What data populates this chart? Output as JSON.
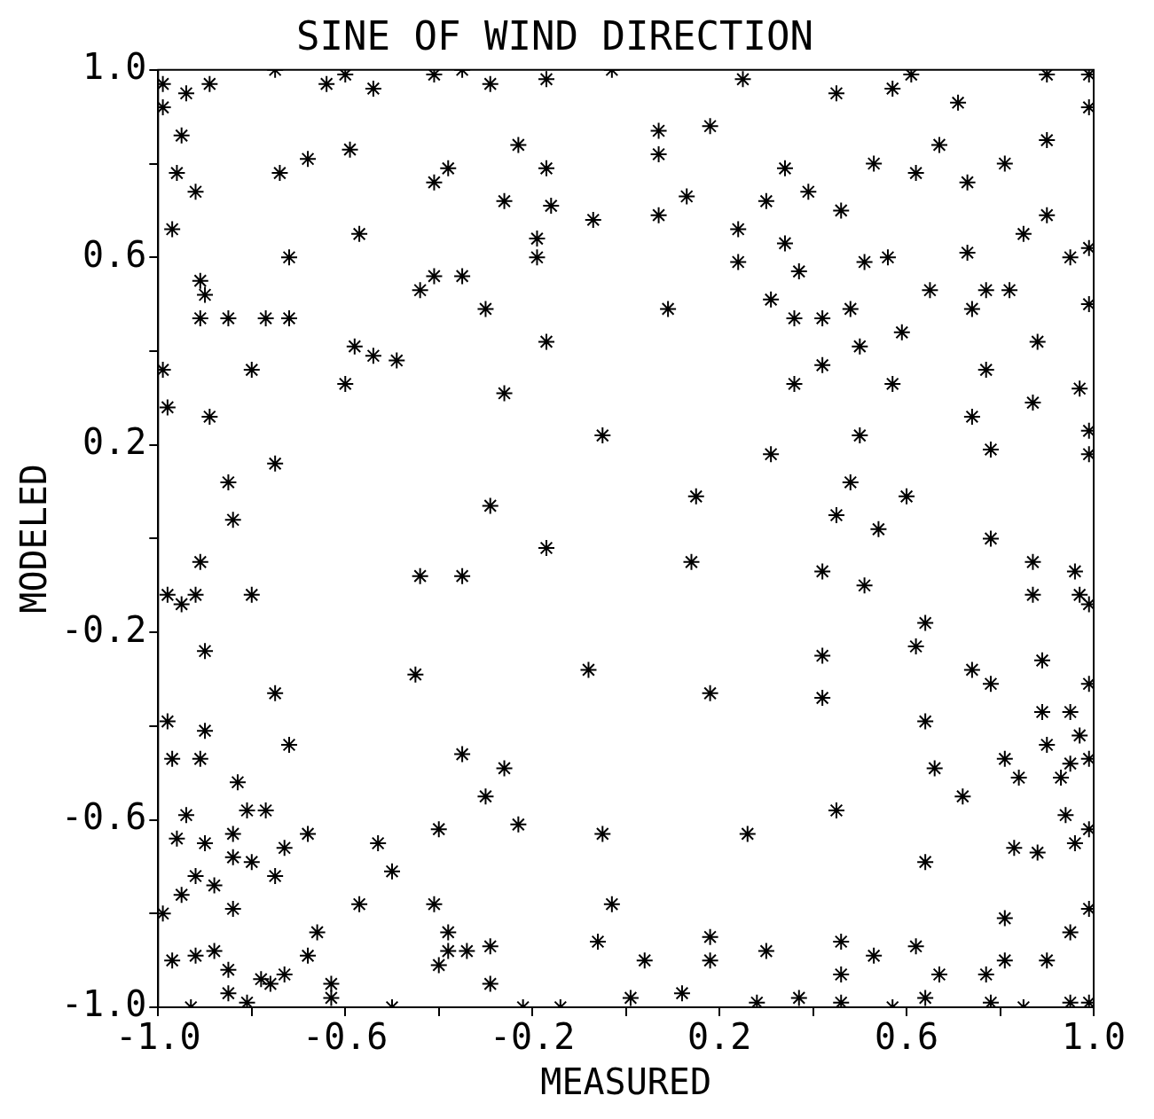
{
  "chart_data": {
    "type": "scatter",
    "title": "SINE OF WIND DIRECTION",
    "xlabel": "MEASURED",
    "ylabel": "MODELED",
    "xlim": [
      -1,
      1
    ],
    "ylim": [
      -1,
      1
    ],
    "xticks": [
      {
        "value": -1,
        "label": "-1.0"
      },
      {
        "value": -0.8,
        "label": null
      },
      {
        "value": -0.6,
        "label": "-0.6"
      },
      {
        "value": -0.4,
        "label": null
      },
      {
        "value": -0.2,
        "label": "-0.2"
      },
      {
        "value": 0,
        "label": null
      },
      {
        "value": 0.2,
        "label": "0.2"
      },
      {
        "value": 0.4,
        "label": null
      },
      {
        "value": 0.6,
        "label": "0.6"
      },
      {
        "value": 0.8,
        "label": null
      },
      {
        "value": 1,
        "label": "1.0"
      }
    ],
    "yticks": [
      {
        "value": -1,
        "label": "-1.0"
      },
      {
        "value": -0.8,
        "label": null
      },
      {
        "value": -0.6,
        "label": "-0.6"
      },
      {
        "value": -0.4,
        "label": null
      },
      {
        "value": -0.2,
        "label": "-0.2"
      },
      {
        "value": 0,
        "label": null
      },
      {
        "value": 0.2,
        "label": "0.2"
      },
      {
        "value": 0.4,
        "label": null
      },
      {
        "value": 0.6,
        "label": "0.6"
      },
      {
        "value": 0.8,
        "label": null
      },
      {
        "value": 1,
        "label": "1.0"
      }
    ],
    "grid": false,
    "legend": false,
    "marker": "cross",
    "series": [
      {
        "color": "#000000",
        "x": [
          -0.99,
          -0.94,
          -0.89,
          -0.75,
          -0.64,
          -0.6,
          -0.54,
          -0.41,
          -0.35,
          -0.29,
          -0.17,
          -0.03,
          0.25,
          0.45,
          0.57,
          0.61,
          0.9,
          0.99,
          -0.99,
          -0.95,
          -0.96,
          -0.92,
          -0.97,
          -0.91,
          -0.9,
          -0.91,
          -0.85,
          -0.77,
          -0.72,
          -0.72,
          -0.74,
          -0.68,
          -0.59,
          -0.57,
          -0.8,
          -0.99,
          -0.98,
          -0.89,
          -0.6,
          -0.58,
          -0.54,
          -0.49,
          -0.44,
          -0.41,
          -0.35,
          -0.3,
          -0.26,
          -0.26,
          -0.41,
          -0.38,
          -0.23,
          -0.19,
          -0.19,
          -0.17,
          -0.16,
          -0.17,
          -0.07,
          -0.05,
          0.07,
          0.07,
          0.07,
          0.09,
          0.13,
          0.18,
          0.24,
          0.24,
          0.3,
          0.31,
          0.34,
          0.34,
          0.36,
          0.36,
          0.37,
          0.39,
          0.42,
          0.42,
          0.46,
          0.48,
          0.5,
          0.5,
          0.51,
          0.53,
          0.56,
          0.59,
          0.57,
          0.62,
          0.65,
          0.67,
          0.71,
          0.73,
          0.74,
          0.73,
          0.77,
          0.77,
          0.74,
          0.78,
          0.81,
          0.82,
          0.85,
          0.88,
          0.87,
          0.9,
          0.9,
          0.95,
          0.97,
          0.99,
          0.99,
          0.99,
          0.99,
          0.99,
          -0.85,
          -0.84,
          -0.75,
          -0.91,
          -0.98,
          -0.92,
          -0.95,
          -0.8,
          -0.9,
          -0.75,
          -0.72,
          -0.44,
          -0.35,
          -0.29,
          -0.17,
          -0.45,
          -0.08,
          0.15,
          0.14,
          0.18,
          0.31,
          0.42,
          0.45,
          0.48,
          0.51,
          0.54,
          0.6,
          0.42,
          0.42,
          0.62,
          0.64,
          0.78,
          0.87,
          0.87,
          0.89,
          0.74,
          0.78,
          0.96,
          0.97,
          0.99,
          0.99,
          -0.98,
          -0.97,
          -0.91,
          -0.9,
          -0.83,
          -0.81,
          -0.77,
          -0.94,
          -0.96,
          -0.9,
          -0.84,
          -0.84,
          -0.8,
          -0.92,
          -0.95,
          -0.88,
          -0.84,
          -0.73,
          -0.75,
          -0.68,
          -0.99,
          -0.97,
          -0.92,
          -0.88,
          -0.85,
          -0.85,
          -0.78,
          -0.76,
          -0.73,
          -0.68,
          -0.66,
          -0.63,
          -0.57,
          -0.53,
          -0.5,
          -0.35,
          -0.26,
          -0.3,
          -0.23,
          -0.4,
          -0.41,
          -0.38,
          -0.38,
          -0.4,
          -0.34,
          -0.29,
          -0.29,
          -0.05,
          -0.03,
          -0.06,
          0.04,
          0.18,
          0.18,
          0.12,
          0.26,
          0.3,
          0.45,
          0.46,
          0.46,
          0.53,
          0.62,
          0.64,
          0.66,
          0.64,
          0.72,
          0.67,
          0.81,
          0.84,
          0.83,
          0.88,
          0.81,
          0.9,
          0.89,
          0.95,
          0.93,
          0.95,
          0.94,
          0.97,
          0.99,
          0.96,
          0.99,
          0.99,
          0.95,
          0.9,
          0.81,
          0.77,
          0.95,
          -0.93,
          -0.81,
          -0.63,
          -0.5,
          -0.22,
          -0.14,
          0.01,
          0.28,
          0.37,
          0.46,
          0.57,
          0.64,
          0.78,
          0.85,
          0.99
        ],
        "values": [
          0.97,
          0.95,
          0.97,
          1.0,
          0.97,
          0.99,
          0.96,
          0.99,
          1.0,
          0.97,
          0.98,
          1.0,
          0.98,
          0.95,
          0.96,
          0.99,
          0.99,
          0.99,
          0.92,
          0.86,
          0.78,
          0.74,
          0.66,
          0.55,
          0.52,
          0.47,
          0.47,
          0.47,
          0.47,
          0.6,
          0.78,
          0.81,
          0.83,
          0.65,
          0.36,
          0.36,
          0.28,
          0.26,
          0.33,
          0.41,
          0.39,
          0.38,
          0.53,
          0.56,
          0.56,
          0.49,
          0.31,
          0.72,
          0.76,
          0.79,
          0.84,
          0.6,
          0.64,
          0.79,
          0.71,
          0.42,
          0.68,
          0.22,
          0.87,
          0.82,
          0.69,
          0.49,
          0.73,
          0.88,
          0.66,
          0.59,
          0.72,
          0.51,
          0.79,
          0.63,
          0.47,
          0.33,
          0.57,
          0.74,
          0.37,
          0.47,
          0.7,
          0.49,
          0.41,
          0.22,
          0.59,
          0.8,
          0.6,
          0.44,
          0.33,
          0.78,
          0.53,
          0.84,
          0.93,
          0.76,
          0.49,
          0.61,
          0.53,
          0.36,
          0.26,
          0.19,
          0.8,
          0.53,
          0.65,
          0.42,
          0.29,
          0.85,
          0.69,
          0.6,
          0.32,
          0.92,
          0.62,
          0.5,
          0.23,
          0.18,
          0.12,
          0.04,
          0.16,
          -0.05,
          -0.12,
          -0.12,
          -0.14,
          -0.12,
          -0.24,
          -0.33,
          -0.44,
          -0.08,
          -0.08,
          0.07,
          -0.02,
          -0.29,
          -0.28,
          0.09,
          -0.05,
          -0.33,
          0.18,
          -0.07,
          0.05,
          0.12,
          -0.1,
          0.02,
          0.09,
          -0.25,
          -0.34,
          -0.23,
          -0.18,
          0.0,
          -0.05,
          -0.12,
          -0.26,
          -0.28,
          -0.31,
          -0.07,
          -0.12,
          -0.14,
          -0.31,
          -0.39,
          -0.47,
          -0.47,
          -0.41,
          -0.52,
          -0.58,
          -0.58,
          -0.59,
          -0.64,
          -0.65,
          -0.63,
          -0.68,
          -0.69,
          -0.72,
          -0.76,
          -0.74,
          -0.79,
          -0.66,
          -0.72,
          -0.63,
          -0.8,
          -0.9,
          -0.89,
          -0.88,
          -0.92,
          -0.97,
          -0.94,
          -0.95,
          -0.93,
          -0.89,
          -0.84,
          -0.95,
          -0.78,
          -0.65,
          -0.71,
          -0.46,
          -0.49,
          -0.55,
          -0.61,
          -0.62,
          -0.78,
          -0.84,
          -0.88,
          -0.91,
          -0.88,
          -0.87,
          -0.95,
          -0.63,
          -0.78,
          -0.86,
          -0.9,
          -0.85,
          -0.9,
          -0.97,
          -0.63,
          -0.88,
          -0.58,
          -0.86,
          -0.93,
          -0.89,
          -0.87,
          -0.39,
          -0.49,
          -0.69,
          -0.55,
          -0.93,
          -0.47,
          -0.51,
          -0.66,
          -0.67,
          -0.81,
          -0.44,
          -0.37,
          -0.37,
          -0.51,
          -0.48,
          -0.59,
          -0.42,
          -0.47,
          -0.65,
          -0.62,
          -0.79,
          -0.84,
          -0.9,
          -0.9,
          -0.93,
          -0.99,
          -1.0,
          -0.99,
          -0.98,
          -1.0,
          -1.0,
          -1.0,
          -0.98,
          -0.99,
          -0.98,
          -0.99,
          -1.0,
          -0.98,
          -0.99,
          -1.0,
          -0.99
        ]
      }
    ]
  }
}
